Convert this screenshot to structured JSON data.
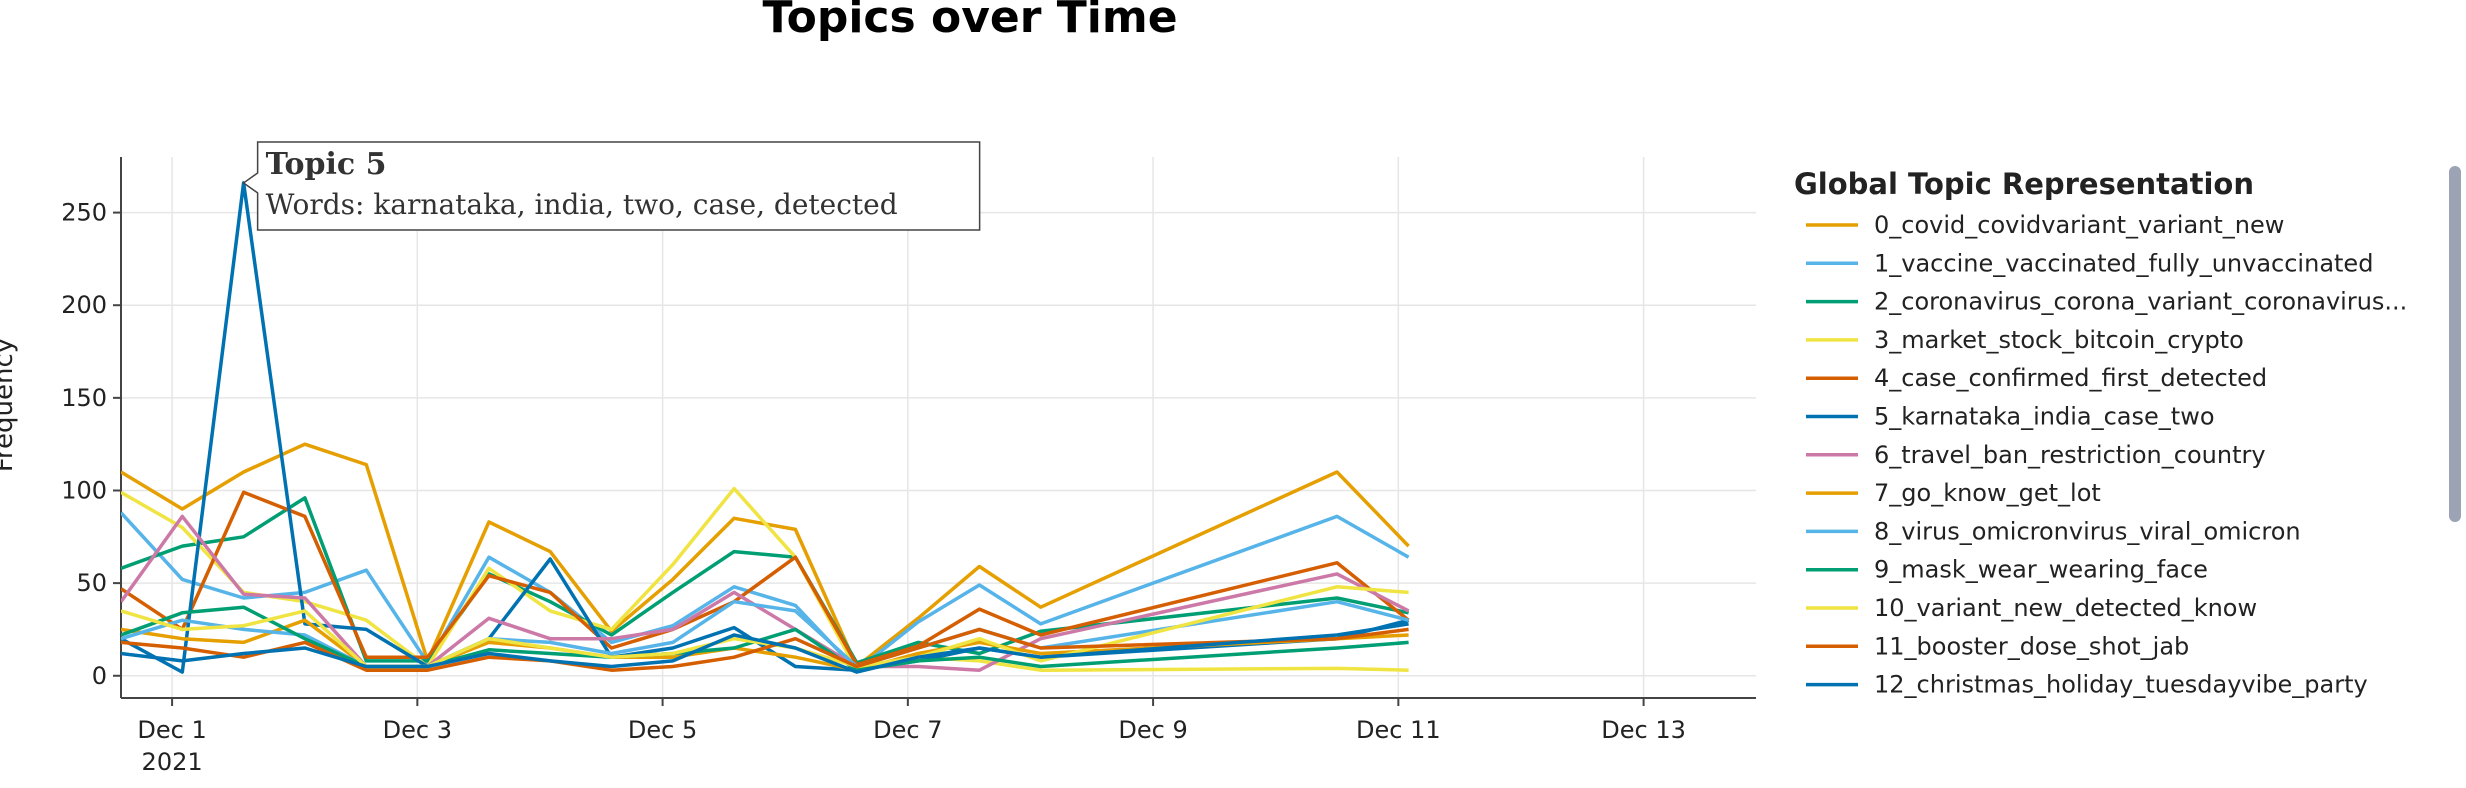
{
  "chart_data": {
    "type": "line",
    "title": "Topics over Time",
    "xlabel": "",
    "ylabel": "Frequency",
    "x_tick_labels": [
      "Dec 1",
      "Dec 3",
      "Dec 5",
      "Dec 7",
      "Dec 9",
      "Dec 11",
      "Dec 13"
    ],
    "x_tick_year": "2021",
    "xlim": [
      "2021-11-30 14:00",
      "2021-12-13 22:00"
    ],
    "ylim": [
      -12,
      280
    ],
    "y_ticks": [
      0,
      50,
      100,
      150,
      200,
      250
    ],
    "grid": true,
    "legend_title": "Global Topic Representation",
    "legend_position": "right",
    "x": [
      "2021-11-30 14:00",
      "2021-12-01 02:00",
      "2021-12-01 14:00",
      "2021-12-02 02:00",
      "2021-12-02 14:00",
      "2021-12-03 02:00",
      "2021-12-03 14:00",
      "2021-12-04 02:00",
      "2021-12-04 14:00",
      "2021-12-05 02:00",
      "2021-12-05 14:00",
      "2021-12-06 02:00",
      "2021-12-06 14:00",
      "2021-12-07 02:00",
      "2021-12-07 14:00",
      "2021-12-08 02:00",
      "2021-12-10 12:00",
      "2021-12-11 02:00",
      "2021-12-13 02:00",
      "2021-12-13 22:00"
    ],
    "series": [
      {
        "name": "0_covid_covidvariant_variant_new",
        "color": "#E69F00",
        "values": [
          110,
          90,
          110,
          125,
          114,
          8,
          83,
          67,
          24,
          52,
          85,
          79,
          5,
          31,
          59,
          37,
          110,
          70,
          null,
          null
        ]
      },
      {
        "name": "1_vaccine_vaccinated_fully_unvaccinated",
        "color": "#56B4E9",
        "values": [
          88,
          52,
          42,
          45,
          57,
          7,
          64,
          45,
          18,
          27,
          48,
          38,
          3,
          29,
          49,
          28,
          86,
          64,
          null,
          null
        ]
      },
      {
        "name": "2_coronavirus_corona_variant_coronavirus...",
        "color": "#009E73",
        "values": [
          58,
          70,
          75,
          96,
          8,
          8,
          55,
          40,
          22,
          45,
          67,
          64,
          7,
          18,
          12,
          24,
          42,
          34,
          null,
          null
        ]
      },
      {
        "name": "3_market_stock_bitcoin_crypto",
        "color": "#F0E442",
        "values": [
          99,
          80,
          45,
          40,
          30,
          5,
          58,
          35,
          25,
          60,
          101,
          64,
          3,
          10,
          8,
          3,
          4,
          3,
          null,
          null
        ]
      },
      {
        "name": "4_case_confirmed_first_detected",
        "color": "#D55E00",
        "values": [
          47,
          25,
          99,
          86,
          10,
          10,
          54,
          45,
          15,
          25,
          40,
          64,
          6,
          16,
          36,
          22,
          61,
          30,
          null,
          null
        ]
      },
      {
        "name": "5_karnataka_india_case_two",
        "color": "#0072B2",
        "values": [
          20,
          2,
          266,
          28,
          25,
          5,
          20,
          63,
          10,
          15,
          26,
          5,
          3,
          8,
          15,
          10,
          20,
          30,
          null,
          null
        ]
      },
      {
        "name": "6_travel_ban_restriction_country",
        "color": "#CC79A7",
        "values": [
          40,
          86,
          44,
          42,
          5,
          5,
          31,
          20,
          20,
          25,
          45,
          25,
          5,
          5,
          3,
          20,
          55,
          35,
          null,
          null
        ]
      },
      {
        "name": "7_go_know_get_lot",
        "color": "#E69F00",
        "values": [
          25,
          20,
          18,
          30,
          5,
          5,
          18,
          15,
          10,
          10,
          15,
          10,
          3,
          12,
          18,
          12,
          20,
          22,
          null,
          null
        ]
      },
      {
        "name": "8_virus_omicronvirus_viral_omicron",
        "color": "#56B4E9",
        "values": [
          20,
          30,
          25,
          22,
          5,
          5,
          20,
          18,
          12,
          18,
          40,
          35,
          5,
          15,
          25,
          15,
          40,
          30,
          null,
          null
        ]
      },
      {
        "name": "9_mask_wear_wearing_face",
        "color": "#009E73",
        "values": [
          22,
          34,
          37,
          20,
          5,
          5,
          14,
          12,
          10,
          12,
          15,
          25,
          3,
          8,
          10,
          5,
          15,
          18,
          null,
          null
        ]
      },
      {
        "name": "10_variant_new_detected_know",
        "color": "#F0E442",
        "values": [
          35,
          25,
          27,
          35,
          5,
          5,
          20,
          15,
          10,
          12,
          20,
          15,
          5,
          10,
          20,
          8,
          48,
          45,
          null,
          null
        ]
      },
      {
        "name": "11_booster_dose_shot_jab",
        "color": "#D55E00",
        "values": [
          18,
          15,
          10,
          18,
          3,
          3,
          10,
          8,
          3,
          5,
          10,
          20,
          5,
          15,
          25,
          15,
          20,
          25,
          null,
          null
        ]
      },
      {
        "name": "12_christmas_holiday_tuesdayvibe_party",
        "color": "#0072B2",
        "values": [
          12,
          8,
          12,
          15,
          5,
          5,
          12,
          8,
          5,
          8,
          22,
          15,
          2,
          10,
          15,
          10,
          22,
          28,
          null,
          null
        ]
      }
    ],
    "tooltip": {
      "series_index": 5,
      "point_index": 2,
      "title": "Topic 5",
      "text": "Words: karnataka, india, two, case, detected"
    }
  }
}
